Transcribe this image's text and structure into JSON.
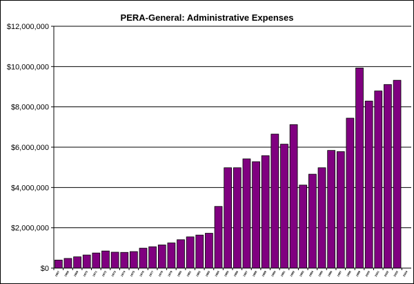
{
  "chart_data": {
    "type": "bar",
    "title": "PERA-General:  Administrative Expenses",
    "xlabel": "",
    "ylabel": "",
    "ylim": [
      0,
      12000000
    ],
    "yticks": [
      0,
      2000000,
      4000000,
      6000000,
      8000000,
      10000000,
      12000000
    ],
    "ytick_labels": [
      "$0",
      "$2,000,000",
      "$4,000,000",
      "$6,000,000",
      "$8,000,000",
      "$10,000,000",
      "$12,000,000"
    ],
    "grid": true,
    "legend": "none",
    "bar_color": "#800080",
    "categories": [
      "1967",
      "1968",
      "1969",
      "1970",
      "1971",
      "1972",
      "1973",
      "1974",
      "1975",
      "1976",
      "1977",
      "1978",
      "1979",
      "1980",
      "1981",
      "1982",
      "1983",
      "1984",
      "1985",
      "1986",
      "1987",
      "1988",
      "1989",
      "1990",
      "1991",
      "1992",
      "1993",
      "1994",
      "1995",
      "1996",
      "1997",
      "1998",
      "1999",
      "2000",
      "2001",
      "2002",
      "2003",
      "2004"
    ],
    "values": [
      400000,
      480000,
      560000,
      650000,
      750000,
      850000,
      790000,
      780000,
      820000,
      990000,
      1060000,
      1150000,
      1250000,
      1410000,
      1550000,
      1640000,
      1730000,
      3060000,
      4980000,
      4980000,
      5420000,
      5280000,
      5580000,
      6650000,
      6150000,
      7120000,
      4120000,
      4660000,
      4980000,
      5840000,
      5780000,
      7440000,
      9930000,
      8290000,
      8790000,
      9110000,
      9320000,
      0
    ]
  }
}
